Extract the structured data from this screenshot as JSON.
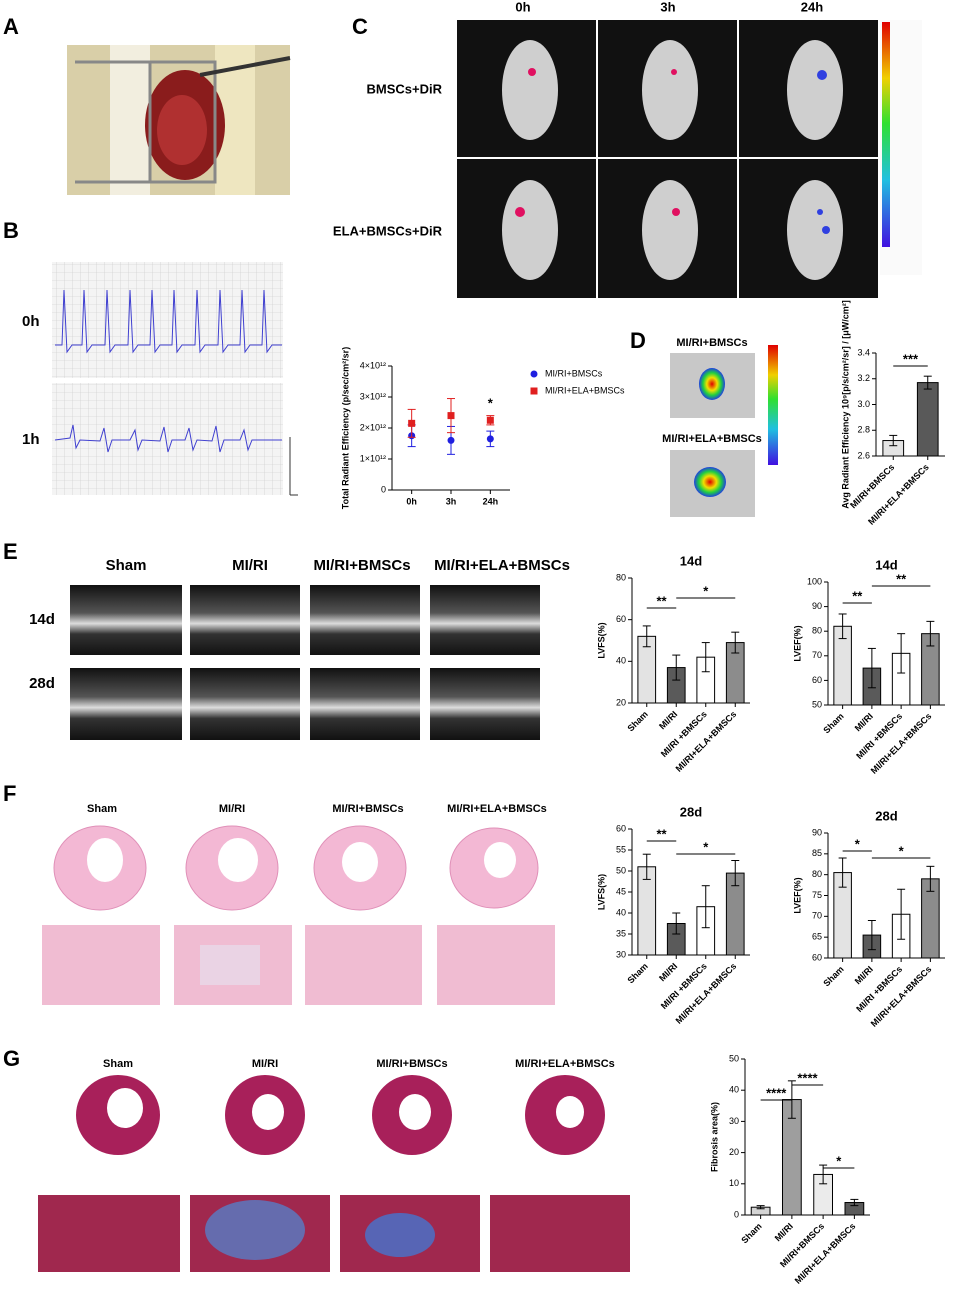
{
  "panel_labels": [
    "A",
    "B",
    "C",
    "D",
    "E",
    "F",
    "G"
  ],
  "panel_b": {
    "rows": [
      "0h",
      "1h"
    ]
  },
  "panel_c": {
    "columns": [
      "0h",
      "3h",
      "24h"
    ],
    "rows": [
      "BMSCs+DiR",
      "ELA+BMSCs+DiR"
    ]
  },
  "panel_d": {
    "images": [
      "MI/RI+BMSCs",
      "MI/RI+ELA+BMSCs"
    ]
  },
  "panel_e": {
    "columns": [
      "Sham",
      "MI/RI",
      "MI/RI+BMSCs",
      "MI/RI+ELA+BMSCs"
    ],
    "rows": [
      "14d",
      "28d"
    ]
  },
  "panel_f": {
    "columns": [
      "Sham",
      "MI/RI",
      "MI/RI+BMSCs",
      "MI/RI+ELA+BMSCs"
    ]
  },
  "panel_g": {
    "columns": [
      "Sham",
      "MI/RI",
      "MI/RI+BMSCs",
      "MI/RI+ELA+BMSCs"
    ]
  },
  "chart_data": [
    {
      "type": "dot",
      "y_label": "Total Radiant Efficiency (p/sec/cm²/sr)",
      "categories": [
        "0h",
        "3h",
        "24h"
      ],
      "series": [
        {
          "name": "MI/RI+BMSCs",
          "color": "#1f1fe0",
          "values": [
            1750000000000.0,
            1600000000000.0,
            1650000000000.0
          ],
          "errors": [
            350000000000.0,
            450000000000.0,
            250000000000.0
          ]
        },
        {
          "name": "MI/RI+ELA+BMSCs",
          "color": "#e01f1f",
          "values": [
            2150000000000.0,
            2400000000000.0,
            2250000000000.0
          ],
          "errors": [
            450000000000.0,
            550000000000.0,
            150000000000.0
          ]
        }
      ],
      "ylim": [
        0,
        4000000000000.0
      ],
      "yticks": [
        0,
        {
          "value": 1000000000000.0,
          "label": "1×10¹²"
        },
        {
          "value": 2000000000000.0,
          "label": "2×10¹²"
        },
        {
          "value": 3000000000000.0,
          "label": "3×10¹²"
        },
        {
          "value": 4000000000000.0,
          "label": "4×10¹²"
        }
      ],
      "annotations": [
        "*"
      ]
    },
    {
      "type": "bar",
      "y_label": "Avg Radiant Efficiency 10⁹[p/s/cm²/sr] / [μW/cm²]",
      "categories": [
        "MI/RI+BMSCs",
        "MI/RI+ELA+BMSCs"
      ],
      "values": [
        2.72,
        3.17
      ],
      "errors": [
        0.04,
        0.05
      ],
      "colors": [
        "#e3e3e3",
        "#595959"
      ],
      "ylim": [
        2.6,
        3.4
      ],
      "yticks": [
        2.6,
        2.8,
        {
          "value": 3,
          "label": "3.0"
        },
        3.2,
        3.4
      ],
      "annotations": [
        "***"
      ]
    },
    {
      "type": "bar",
      "title": "14d",
      "y_label": "LVFS(%)",
      "categories": [
        "Sham",
        "MI/RI",
        "MI/RI +BMSCs",
        "MI/RI+ELA+BMSCs"
      ],
      "values": [
        52,
        37,
        42,
        49
      ],
      "errors": [
        5,
        6,
        7,
        5
      ],
      "colors": [
        "#e3e3e3",
        "#5a5a5a",
        "#ffffff",
        "#8c8c8c"
      ],
      "ylim": [
        20,
        80
      ],
      "yticks": [
        20,
        40,
        60,
        80
      ],
      "annotations": [
        "**",
        "*"
      ]
    },
    {
      "type": "bar",
      "title": "14d",
      "y_label": "LVEF(%)",
      "categories": [
        "Sham",
        "MI/RI",
        "MI/RI +BMSCs",
        "MI/RI+ELA+BMSCs"
      ],
      "values": [
        82,
        65,
        71,
        79
      ],
      "errors": [
        5,
        8,
        8,
        5
      ],
      "colors": [
        "#e3e3e3",
        "#5a5a5a",
        "#ffffff",
        "#8c8c8c"
      ],
      "ylim": [
        50,
        100
      ],
      "yticks": [
        50,
        60,
        70,
        80,
        90,
        100
      ],
      "annotations": [
        "**",
        "**"
      ]
    },
    {
      "type": "bar",
      "title": "28d",
      "y_label": "LVFS(%)",
      "categories": [
        "Sham",
        "MI/RI",
        "MI/RI +BMSCs",
        "MI/RI+ELA+BMSCs"
      ],
      "values": [
        51,
        37.5,
        41.5,
        49.5
      ],
      "errors": [
        3,
        2.5,
        5,
        3
      ],
      "colors": [
        "#e3e3e3",
        "#5a5a5a",
        "#ffffff",
        "#8c8c8c"
      ],
      "ylim": [
        30,
        60
      ],
      "yticks": [
        30,
        35,
        40,
        45,
        50,
        55,
        60
      ],
      "annotations": [
        "**",
        "*"
      ]
    },
    {
      "type": "bar",
      "title": "28d",
      "y_label": "LVEF(%)",
      "categories": [
        "Sham",
        "MI/RI",
        "MI/RI +BMSCs",
        "MI/RI+ELA+BMSCs"
      ],
      "values": [
        80.5,
        65.5,
        70.5,
        79
      ],
      "errors": [
        3.5,
        3.5,
        6,
        3
      ],
      "colors": [
        "#e3e3e3",
        "#5a5a5a",
        "#ffffff",
        "#8c8c8c"
      ],
      "ylim": [
        60,
        90
      ],
      "yticks": [
        60,
        65,
        70,
        75,
        80,
        85,
        90
      ],
      "annotations": [
        "*",
        "*"
      ]
    },
    {
      "type": "bar",
      "y_label": "Fibrosis area(%)",
      "categories": [
        "Sham",
        "MI/RI",
        "MI/RI+BMSCs",
        "MI/RI+ELA+BMSCs"
      ],
      "values": [
        2.5,
        37,
        13,
        4
      ],
      "errors": [
        0.5,
        6,
        3,
        1
      ],
      "colors": [
        "#d4d4d4",
        "#9e9e9e",
        "#ebebeb",
        "#5a5a5a"
      ],
      "ylim": [
        0,
        50
      ],
      "yticks": [
        0,
        10,
        20,
        30,
        40,
        50
      ],
      "annotations": [
        "****",
        "****",
        "*"
      ]
    }
  ]
}
